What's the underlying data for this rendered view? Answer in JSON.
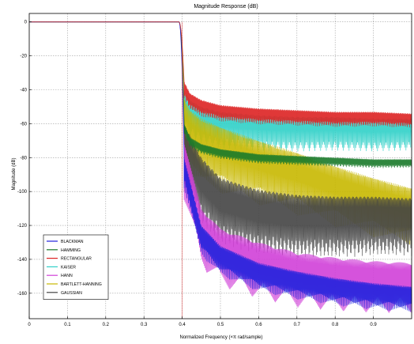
{
  "chart_data": {
    "type": "line",
    "title": "Magnitude Response (dB)",
    "xlabel": "Normalized Frequency (×π rad/sample)",
    "ylabel": "Magnitude (dB)",
    "xlim": [
      0,
      1
    ],
    "ylim": [
      -175,
      5
    ],
    "x_ticks": [
      "0",
      "0.1",
      "0.2",
      "0.3",
      "0.4",
      "0.5",
      "0.6",
      "0.7",
      "0.8",
      "0.9"
    ],
    "y_ticks": [
      "0",
      "-20",
      "-40",
      "-60",
      "-80",
      "-100",
      "-120",
      "-140",
      "-160"
    ],
    "grid": true,
    "legend_position": "bottom-left",
    "colors": {
      "background": "#ffffff",
      "grid": "#a0a0a0",
      "axis": "#000000"
    },
    "series": [
      {
        "name": "BLACKMAN",
        "color": "#2222dd",
        "passband_edge": 0.4,
        "envelope": [
          [
            0.405,
            -80
          ],
          [
            0.45,
            -120
          ],
          [
            0.5,
            -132
          ],
          [
            0.6,
            -142
          ],
          [
            0.7,
            -147
          ],
          [
            0.8,
            -151
          ],
          [
            0.9,
            -154
          ],
          [
            1.0,
            -156
          ]
        ],
        "ripple_depth": 18
      },
      {
        "name": "HAMMING",
        "color": "#1a7a2a",
        "passband_edge": 0.4,
        "envelope": [
          [
            0.405,
            -60
          ],
          [
            0.42,
            -68
          ],
          [
            0.45,
            -72
          ],
          [
            0.5,
            -75
          ],
          [
            0.6,
            -78
          ],
          [
            0.7,
            -79
          ],
          [
            0.8,
            -80
          ],
          [
            0.9,
            -81
          ],
          [
            1.0,
            -81
          ]
        ],
        "ripple_depth": 6
      },
      {
        "name": "RECTANGULAR",
        "color": "#dd2222",
        "passband_edge": 0.4,
        "envelope": [
          [
            0.405,
            -35
          ],
          [
            0.42,
            -42
          ],
          [
            0.45,
            -46
          ],
          [
            0.5,
            -49
          ],
          [
            0.6,
            -51
          ],
          [
            0.7,
            -52
          ],
          [
            0.8,
            -53
          ],
          [
            0.9,
            -53
          ],
          [
            1.0,
            -54
          ]
        ],
        "ripple_depth": 10
      },
      {
        "name": "KAISER",
        "color": "#30d0c8",
        "passband_edge": 0.4,
        "envelope": [
          [
            0.405,
            -40
          ],
          [
            0.42,
            -46
          ],
          [
            0.45,
            -50
          ],
          [
            0.5,
            -53
          ],
          [
            0.6,
            -55
          ],
          [
            0.7,
            -56
          ],
          [
            0.8,
            -56
          ],
          [
            0.9,
            -57
          ],
          [
            1.0,
            -57
          ]
        ],
        "ripple_depth": 22
      },
      {
        "name": "HANN",
        "color": "#d040d8",
        "passband_edge": 0.4,
        "envelope": [
          [
            0.405,
            -70
          ],
          [
            0.45,
            -110
          ],
          [
            0.5,
            -122
          ],
          [
            0.6,
            -130
          ],
          [
            0.7,
            -136
          ],
          [
            0.8,
            -139
          ],
          [
            0.9,
            -141
          ],
          [
            1.0,
            -142
          ]
        ],
        "ripple_depth": 35
      },
      {
        "name": "BARTLETT-HANNING",
        "color": "#c8b800",
        "passband_edge": 0.4,
        "envelope": [
          [
            0.405,
            -45
          ],
          [
            0.42,
            -52
          ],
          [
            0.45,
            -57
          ],
          [
            0.5,
            -62
          ],
          [
            0.6,
            -70
          ],
          [
            0.7,
            -77
          ],
          [
            0.8,
            -85
          ],
          [
            0.9,
            -92
          ],
          [
            1.0,
            -98
          ]
        ],
        "ripple_depth": 40
      },
      {
        "name": "GAUSSIAN",
        "color": "#444444",
        "passband_edge": 0.4,
        "envelope": [
          [
            0.405,
            -60
          ],
          [
            0.45,
            -80
          ],
          [
            0.5,
            -92
          ],
          [
            0.6,
            -99
          ],
          [
            0.7,
            -102
          ],
          [
            0.8,
            -103
          ],
          [
            0.9,
            -103
          ],
          [
            1.0,
            -104
          ]
        ],
        "ripple_depth": 40
      }
    ]
  }
}
